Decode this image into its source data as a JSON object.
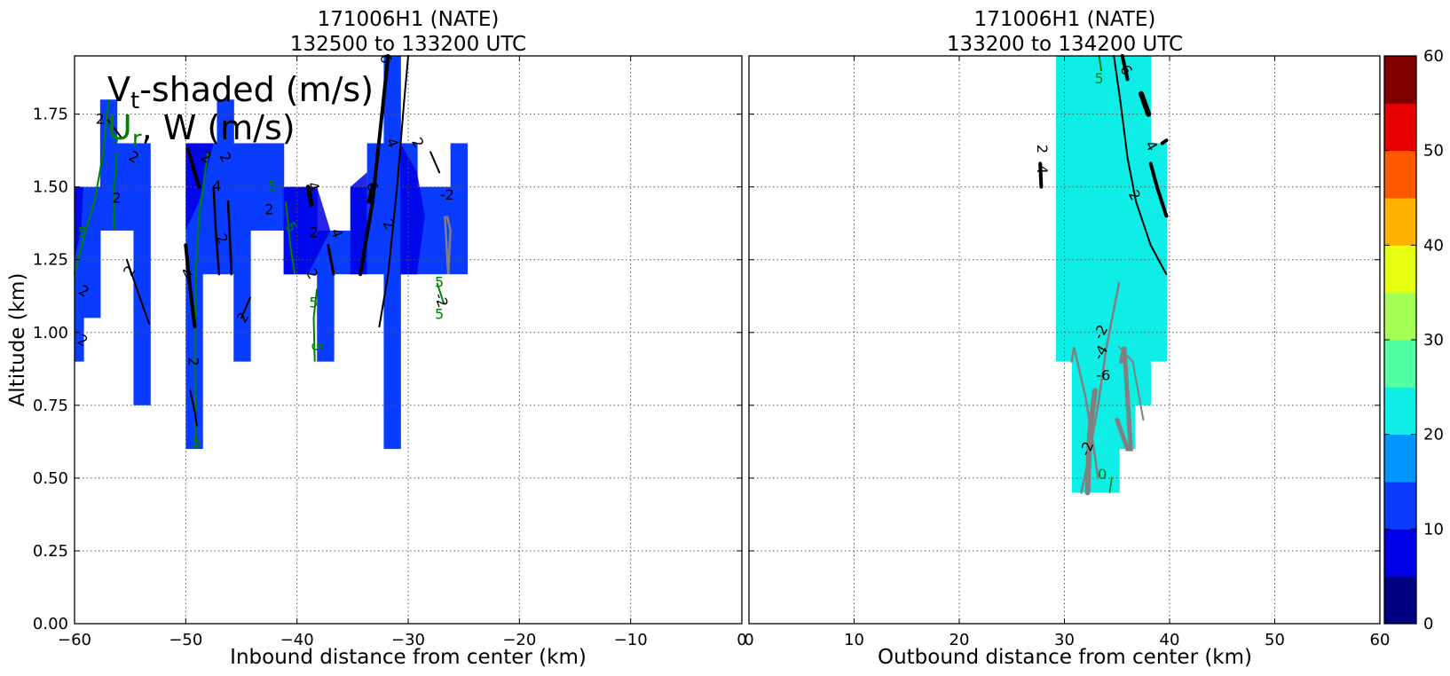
{
  "colors": {
    "upper_left_fill": "#0a3cff",
    "upper_left_dark": "#0000e8",
    "upper_right_fill": "#0eeee6",
    "contour_black": "#000000",
    "contour_green": "#008000",
    "contour_gray": "#808080"
  },
  "chart_data": [
    {
      "id": "left",
      "type": "heatmap",
      "title_line1": "171006H1 (NATE)",
      "title_line2": "132500 to 133200 UTC",
      "xlabel": "Inbound distance from center (km)",
      "ylabel": "Altitude (km)",
      "xlim": [
        -60,
        0
      ],
      "ylim": [
        0,
        1.95
      ],
      "xticks": [
        -60,
        -50,
        -40,
        -30,
        -20,
        -10,
        0
      ],
      "xtick_labels": [
        "−60",
        "−50",
        "−40",
        "−30",
        "−20",
        "−10",
        "0"
      ],
      "yticks": [
        0.0,
        0.25,
        0.5,
        0.75,
        1.0,
        1.25,
        1.5,
        1.75
      ],
      "ytick_labels": [
        "0.00",
        "0.25",
        "0.50",
        "0.75",
        "1.00",
        "1.25",
        "1.50",
        "1.75"
      ],
      "grid": true,
      "legend_title_vt": "V",
      "legend_title_vt_sub": "t",
      "legend_title_vt_rest": "-shaded (m/s)",
      "legend_title_ur": "U",
      "legend_title_ur_sub": "r",
      "legend_title_w": ", W (m/s)",
      "shaded_columns_vt_mps": [
        {
          "x0": -60,
          "x1": -59.2,
          "y0": 0.9,
          "y1": 1.5,
          "vt": 12
        },
        {
          "x0": -59.2,
          "x1": -57.7,
          "y0": 1.05,
          "y1": 1.5,
          "vt": 12
        },
        {
          "x0": -57.7,
          "x1": -56.2,
          "y0": 1.35,
          "y1": 1.8,
          "vt": 12
        },
        {
          "x0": -56.2,
          "x1": -54.7,
          "y0": 1.35,
          "y1": 1.65,
          "vt": 12
        },
        {
          "x0": -54.7,
          "x1": -53.2,
          "y0": 0.75,
          "y1": 1.65,
          "vt": 12
        },
        {
          "x0": -50,
          "x1": -48.5,
          "y0": 0.6,
          "y1": 1.65,
          "vt": 12
        },
        {
          "x0": -48.5,
          "x1": -47.2,
          "y0": 1.2,
          "y1": 1.65,
          "vt": 12
        },
        {
          "x0": -47.2,
          "x1": -45.7,
          "y0": 1.2,
          "y1": 1.8,
          "vt": 12
        },
        {
          "x0": -45.7,
          "x1": -44.2,
          "y0": 0.9,
          "y1": 1.65,
          "vt": 12
        },
        {
          "x0": -44.2,
          "x1": -41.2,
          "y0": 1.35,
          "y1": 1.65,
          "vt": 12
        },
        {
          "x0": -41.2,
          "x1": -38.2,
          "y0": 1.2,
          "y1": 1.5,
          "vt": 12
        },
        {
          "x0": -38.2,
          "x1": -36.7,
          "y0": 0.9,
          "y1": 1.35,
          "vt": 12
        },
        {
          "x0": -36.7,
          "x1": -35.2,
          "y0": 1.2,
          "y1": 1.35,
          "vt": 12
        },
        {
          "x0": -35.2,
          "x1": -33.7,
          "y0": 1.2,
          "y1": 1.5,
          "vt": 12
        },
        {
          "x0": -33.7,
          "x1": -32.2,
          "y0": 1.2,
          "y1": 1.65,
          "vt": 12
        },
        {
          "x0": -32.2,
          "x1": -30.7,
          "y0": 0.6,
          "y1": 1.95,
          "vt": 12
        },
        {
          "x0": -30.7,
          "x1": -29.2,
          "y0": 1.2,
          "y1": 1.65,
          "vt": 12
        },
        {
          "x0": -29.2,
          "x1": -26.2,
          "y0": 1.2,
          "y1": 1.5,
          "vt": 12
        },
        {
          "x0": -26.2,
          "x1": -24.7,
          "y0": 1.2,
          "y1": 1.65,
          "vt": 12
        }
      ],
      "contour_labels": [
        {
          "x": -57.7,
          "y": 1.73,
          "text": "2",
          "color": "black",
          "rot": 0
        },
        {
          "x": -56.4,
          "y": 1.66,
          "text": "5",
          "color": "green",
          "rot": 0
        },
        {
          "x": -54.7,
          "y": 1.6,
          "text": "2",
          "color": "black",
          "rot": 30
        },
        {
          "x": -56.2,
          "y": 1.46,
          "text": "2",
          "color": "black",
          "rot": 0
        },
        {
          "x": -59.3,
          "y": 1.34,
          "text": "5",
          "color": "green",
          "rot": 0
        },
        {
          "x": -55,
          "y": 1.21,
          "text": "2",
          "color": "black",
          "rot": -60
        },
        {
          "x": -59.2,
          "y": 1.14,
          "text": "2",
          "color": "black",
          "rot": 30
        },
        {
          "x": -59.3,
          "y": 0.97,
          "text": "2",
          "color": "black",
          "rot": 30
        },
        {
          "x": -48.2,
          "y": 1.6,
          "text": "2",
          "color": "black",
          "rot": 30
        },
        {
          "x": -46.5,
          "y": 1.6,
          "text": "2",
          "color": "black",
          "rot": 60
        },
        {
          "x": -47.2,
          "y": 1.5,
          "text": "4",
          "color": "black",
          "rot": 0
        },
        {
          "x": -46.8,
          "y": 1.32,
          "text": "2",
          "color": "black",
          "rot": 60
        },
        {
          "x": -49.8,
          "y": 1.2,
          "text": "4",
          "color": "black",
          "rot": -60
        },
        {
          "x": -49.4,
          "y": 0.9,
          "text": "2",
          "color": "black",
          "rot": 90
        },
        {
          "x": -44.8,
          "y": 1.05,
          "text": "2",
          "color": "black",
          "rot": -60
        },
        {
          "x": -49,
          "y": 0.62,
          "text": "5",
          "color": "green",
          "rot": 0
        },
        {
          "x": -42.2,
          "y": 1.5,
          "text": "5",
          "color": "green",
          "rot": 0
        },
        {
          "x": -42.5,
          "y": 1.42,
          "text": "2",
          "color": "black",
          "rot": 0
        },
        {
          "x": -40.6,
          "y": 1.36,
          "text": "5",
          "color": "green",
          "rot": 60
        },
        {
          "x": -38.5,
          "y": 1.34,
          "text": "2",
          "color": "black",
          "rot": 0
        },
        {
          "x": -38.6,
          "y": 1.5,
          "text": "4",
          "color": "black",
          "rot": 70
        },
        {
          "x": -36.5,
          "y": 1.34,
          "text": "4",
          "color": "black",
          "rot": 70
        },
        {
          "x": -38.7,
          "y": 1.2,
          "text": "2",
          "color": "black",
          "rot": 60
        },
        {
          "x": -38.5,
          "y": 1.1,
          "text": "5",
          "color": "green",
          "rot": 0
        },
        {
          "x": -38.3,
          "y": 0.95,
          "text": "5",
          "color": "green",
          "rot": 90
        },
        {
          "x": -33.3,
          "y": 1.5,
          "text": "6",
          "color": "black",
          "rot": 70
        },
        {
          "x": -31.8,
          "y": 1.37,
          "text": "2",
          "color": "black",
          "rot": 60
        },
        {
          "x": -31.5,
          "y": 1.65,
          "text": "4",
          "color": "black",
          "rot": 70
        },
        {
          "x": -29.2,
          "y": 1.65,
          "text": "2",
          "color": "black",
          "rot": 60
        },
        {
          "x": -32.1,
          "y": 1.94,
          "text": "6",
          "color": "black",
          "rot": 70
        },
        {
          "x": -27.2,
          "y": 1.17,
          "text": "5",
          "color": "green",
          "rot": 0
        },
        {
          "x": -26.5,
          "y": 1.47,
          "text": "-2",
          "color": "black",
          "rot": 0
        },
        {
          "x": -27.1,
          "y": 1.11,
          "text": "-2",
          "color": "black",
          "rot": 70
        },
        {
          "x": -27.2,
          "y": 1.06,
          "text": "5",
          "color": "green",
          "rot": 0
        }
      ]
    },
    {
      "id": "right",
      "type": "heatmap",
      "title_line1": "171006H1 (NATE)",
      "title_line2": "133200 to 134200 UTC",
      "xlabel": "Outbound distance from center (km)",
      "xlim": [
        0,
        60
      ],
      "ylim": [
        0,
        1.95
      ],
      "xticks": [
        0,
        10,
        20,
        30,
        40,
        50,
        60
      ],
      "xtick_labels": [
        "0",
        "10",
        "20",
        "30",
        "40",
        "50",
        "60"
      ],
      "grid": true,
      "shaded_columns_vt_mps": [
        {
          "x0": 29.2,
          "x1": 30.7,
          "y0": 0.9,
          "y1": 1.95,
          "vt": 22
        },
        {
          "x0": 30.7,
          "x1": 35.2,
          "y0": 0.45,
          "y1": 1.95,
          "vt": 22
        },
        {
          "x0": 35.2,
          "x1": 36.7,
          "y0": 0.6,
          "y1": 1.95,
          "vt": 22
        },
        {
          "x0": 36.7,
          "x1": 38.2,
          "y0": 0.75,
          "y1": 1.95,
          "vt": 22
        },
        {
          "x0": 38.2,
          "x1": 39.7,
          "y0": 0.9,
          "y1": 1.65,
          "vt": 22
        }
      ],
      "contour_labels": [
        {
          "x": 33.3,
          "y": 1.87,
          "text": "5",
          "color": "green",
          "rot": 0
        },
        {
          "x": 35.8,
          "y": 1.9,
          "text": "6",
          "color": "black",
          "rot": 60
        },
        {
          "x": 38.2,
          "y": 1.64,
          "text": "4",
          "color": "black",
          "rot": 60
        },
        {
          "x": 27.8,
          "y": 1.63,
          "text": "2",
          "color": "black",
          "rot": 90
        },
        {
          "x": 27.8,
          "y": 1.56,
          "text": "4",
          "color": "black",
          "rot": 90
        },
        {
          "x": 36.6,
          "y": 1.47,
          "text": "2",
          "color": "black",
          "rot": 60
        },
        {
          "x": 33.5,
          "y": 1.0,
          "text": "-2",
          "color": "black",
          "rot": -60
        },
        {
          "x": 33.5,
          "y": 0.93,
          "text": "-4",
          "color": "black",
          "rot": -60
        },
        {
          "x": 33.7,
          "y": 0.85,
          "text": "-6",
          "color": "black",
          "rot": 0
        },
        {
          "x": 32.2,
          "y": 0.6,
          "text": "-2",
          "color": "black",
          "rot": -70
        },
        {
          "x": 33.6,
          "y": 0.51,
          "text": "0",
          "color": "green",
          "rot": 0
        }
      ]
    }
  ],
  "colorbar": {
    "ticks": [
      0,
      10,
      20,
      30,
      40,
      50,
      60
    ],
    "tick_labels": [
      "0",
      "10",
      "20",
      "30",
      "40",
      "50",
      "60"
    ],
    "range": [
      0,
      60
    ],
    "bands": [
      {
        "from": 0,
        "to": 5,
        "color": "#000080"
      },
      {
        "from": 5,
        "to": 10,
        "color": "#0000e8"
      },
      {
        "from": 10,
        "to": 15,
        "color": "#0a3cff"
      },
      {
        "from": 15,
        "to": 20,
        "color": "#0094ff"
      },
      {
        "from": 20,
        "to": 25,
        "color": "#0eeee6"
      },
      {
        "from": 25,
        "to": 30,
        "color": "#53ffa3"
      },
      {
        "from": 30,
        "to": 35,
        "color": "#a3ff53"
      },
      {
        "from": 35,
        "to": 40,
        "color": "#e6ff0e"
      },
      {
        "from": 40,
        "to": 45,
        "color": "#ffb100"
      },
      {
        "from": 45,
        "to": 50,
        "color": "#ff5900"
      },
      {
        "from": 50,
        "to": 55,
        "color": "#e80000"
      },
      {
        "from": 55,
        "to": 60,
        "color": "#800000"
      }
    ]
  }
}
